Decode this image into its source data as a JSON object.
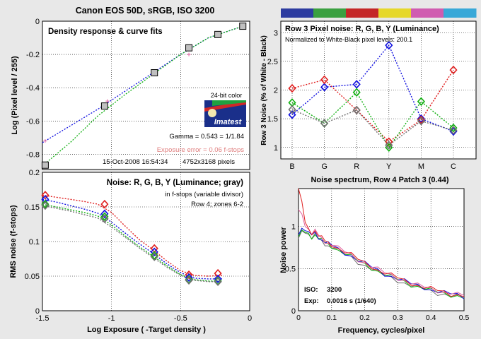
{
  "page": {
    "title": "Canon EOS 50D, sRGB, ISO 3200",
    "title_color": "#5a0a5a"
  },
  "colors": {
    "red": "#e02020",
    "green": "#10b010",
    "blue": "#1010e0",
    "gray": "#707070",
    "pink": "#e060a0",
    "bar": [
      "#2d3ca0",
      "#3aa040",
      "#c42626",
      "#e6d82a",
      "#d05cb0",
      "#38a8d8"
    ]
  },
  "chart_data": [
    {
      "id": "density",
      "type": "scatter",
      "title": "Density response & curve fits",
      "xlabel": "",
      "ylabel": "Log (Pixel level / 255)",
      "xlim": [
        -1.5,
        0
      ],
      "ylim": [
        -0.9,
        0
      ],
      "x_ticks": [
        "-1.5",
        "-1",
        "-0.5",
        "0"
      ],
      "y_ticks": [
        "0",
        "-0.2",
        "-0.4",
        "-0.6",
        "-0.8"
      ],
      "points": [
        {
          "x": -1.48,
          "y": -0.865
        },
        {
          "x": -1.05,
          "y": -0.51
        },
        {
          "x": -0.69,
          "y": -0.31
        },
        {
          "x": -0.44,
          "y": -0.16
        },
        {
          "x": -0.23,
          "y": -0.08
        },
        {
          "x": -0.05,
          "y": -0.03
        }
      ],
      "pink_points": [
        {
          "x": -1.48,
          "y": -0.72
        },
        {
          "x": -1.03,
          "y": -0.48
        },
        {
          "x": -0.44,
          "y": -0.2
        },
        {
          "x": -0.23,
          "y": -0.09
        }
      ],
      "fit_blue": [
        {
          "x": -1.5,
          "y": -0.73
        },
        {
          "x": -1.3,
          "y": -0.63
        },
        {
          "x": -1.1,
          "y": -0.53
        },
        {
          "x": -0.9,
          "y": -0.42
        },
        {
          "x": -0.7,
          "y": -0.31
        },
        {
          "x": -0.5,
          "y": -0.2
        },
        {
          "x": -0.3,
          "y": -0.1
        },
        {
          "x": -0.05,
          "y": -0.03
        }
      ],
      "fit_green": [
        {
          "x": -1.5,
          "y": -0.87
        },
        {
          "x": -1.3,
          "y": -0.73
        },
        {
          "x": -1.1,
          "y": -0.57
        },
        {
          "x": -0.9,
          "y": -0.44
        },
        {
          "x": -0.7,
          "y": -0.32
        },
        {
          "x": -0.5,
          "y": -0.2
        },
        {
          "x": -0.3,
          "y": -0.1
        },
        {
          "x": -0.05,
          "y": -0.03
        }
      ],
      "logo": {
        "caption": "24-bit color",
        "brand": "Imatest"
      },
      "gamma": "Gamma = 0.543 = 1/1.84",
      "exposure_error": "Exposure error = 0.06 f-stops",
      "timestamp": "15-Oct-2008 16:54:34",
      "dimensions": "4752x3168 pixels"
    },
    {
      "id": "noise",
      "type": "line",
      "title": "Noise: R, G, B, Y (Luminance; gray)",
      "subtitle_1": "in f-stops (variable divisor)",
      "subtitle_2": "Row 4; zones 6-2",
      "xlabel": "Log Exposure ( -Target density )",
      "ylabel": "RMS noise (f-stops)",
      "xlim": [
        -1.5,
        0
      ],
      "ylim": [
        0,
        0.2
      ],
      "x_ticks": [
        "-1.5",
        "-1",
        "-0.5",
        "0"
      ],
      "y_ticks": [
        "0.2",
        "0.15",
        "0.1",
        "0.05",
        "0"
      ],
      "x": [
        -1.48,
        -1.05,
        -0.69,
        -0.44,
        -0.23
      ],
      "series": [
        {
          "color": "red",
          "values": [
            0.167,
            0.154,
            0.09,
            0.052,
            0.054
          ]
        },
        {
          "color": "blue",
          "values": [
            0.161,
            0.14,
            0.085,
            0.048,
            0.046
          ]
        },
        {
          "color": "green",
          "values": [
            0.154,
            0.136,
            0.08,
            0.045,
            0.043
          ]
        },
        {
          "color": "gray",
          "values": [
            0.152,
            0.133,
            0.078,
            0.044,
            0.042
          ]
        }
      ],
      "fit_x": [
        -1.5,
        -1.4,
        -1.3,
        -1.2,
        -1.1,
        -1.0,
        -0.9,
        -0.8,
        -0.7,
        -0.6,
        -0.5,
        -0.4,
        -0.3,
        -0.2
      ],
      "fits": [
        {
          "color": "red",
          "values": [
            0.167,
            0.164,
            0.161,
            0.158,
            0.154,
            0.142,
            0.122,
            0.103,
            0.088,
            0.072,
            0.058,
            0.051,
            0.05,
            0.051
          ]
        },
        {
          "color": "blue",
          "values": [
            0.161,
            0.157,
            0.152,
            0.147,
            0.141,
            0.128,
            0.112,
            0.097,
            0.083,
            0.068,
            0.055,
            0.047,
            0.046,
            0.046
          ]
        },
        {
          "color": "green",
          "values": [
            0.154,
            0.15,
            0.146,
            0.142,
            0.137,
            0.124,
            0.108,
            0.093,
            0.079,
            0.065,
            0.052,
            0.045,
            0.043,
            0.043
          ]
        },
        {
          "color": "gray",
          "values": [
            0.152,
            0.148,
            0.144,
            0.139,
            0.134,
            0.121,
            0.106,
            0.091,
            0.077,
            0.063,
            0.051,
            0.044,
            0.042,
            0.042
          ]
        }
      ]
    },
    {
      "id": "row3",
      "type": "line",
      "title": "Row 3 Pixel noise: R, G, B, Y (Luminance)",
      "subtitle": "Normalized to White-Black pixel levels: 200.1",
      "xlabel": "",
      "ylabel": "Row 3 Noise (% of White - Black)",
      "categories": [
        "B",
        "G",
        "R",
        "Y",
        "M",
        "C"
      ],
      "ylim": [
        0.8,
        3.2
      ],
      "y_ticks": [
        "3",
        "2.5",
        "2",
        "1.5",
        "1"
      ],
      "series": [
        {
          "color": "blue",
          "values": [
            1.57,
            2.05,
            2.1,
            2.78,
            1.5,
            1.28
          ]
        },
        {
          "color": "red",
          "values": [
            2.03,
            2.18,
            1.65,
            1.1,
            1.48,
            2.35
          ]
        },
        {
          "color": "green",
          "values": [
            1.78,
            1.42,
            1.96,
            1.0,
            1.8,
            1.34
          ]
        },
        {
          "color": "gray",
          "values": [
            1.66,
            1.42,
            1.65,
            1.04,
            1.46,
            1.3
          ]
        }
      ]
    },
    {
      "id": "spectrum",
      "type": "line",
      "title": "Noise spectrum, Row 4 Patch 3 (0.44)",
      "xlabel": "Frequency, cycles/pixel",
      "ylabel": "Noise power",
      "xlim": [
        0,
        0.5
      ],
      "ylim": [
        0,
        1.45
      ],
      "x_ticks": [
        "0",
        "0.1",
        "0.2",
        "0.3",
        "0.4",
        "0.5"
      ],
      "y_ticks": [
        "1",
        "0.5",
        "0"
      ],
      "iso_label": "ISO:",
      "iso_value": "3200",
      "exp_label": "Exp:",
      "exp_value": "0.0016 s  (1/640)",
      "x": [
        0,
        0.01,
        0.02,
        0.03,
        0.04,
        0.05,
        0.06,
        0.07,
        0.08,
        0.09,
        0.1,
        0.12,
        0.14,
        0.16,
        0.18,
        0.2,
        0.22,
        0.24,
        0.26,
        0.28,
        0.3,
        0.32,
        0.34,
        0.36,
        0.38,
        0.4,
        0.42,
        0.44,
        0.46,
        0.48,
        0.5
      ],
      "series": [
        {
          "color": "red",
          "values": [
            1.45,
            1.3,
            1.05,
            0.98,
            0.93,
            0.95,
            0.9,
            0.86,
            0.83,
            0.8,
            0.79,
            0.74,
            0.7,
            0.66,
            0.61,
            0.57,
            0.53,
            0.48,
            0.45,
            0.42,
            0.39,
            0.36,
            0.33,
            0.3,
            0.28,
            0.26,
            0.24,
            0.22,
            0.2,
            0.19,
            0.18
          ]
        },
        {
          "color": "pink",
          "values": [
            1.2,
            1.15,
            1.0,
            0.97,
            0.92,
            0.94,
            0.9,
            0.85,
            0.83,
            0.8,
            0.79,
            0.74,
            0.7,
            0.66,
            0.61,
            0.57,
            0.53,
            0.49,
            0.45,
            0.42,
            0.39,
            0.36,
            0.33,
            0.3,
            0.28,
            0.26,
            0.24,
            0.22,
            0.21,
            0.19,
            0.18
          ]
        },
        {
          "color": "blue",
          "values": [
            0.9,
            0.98,
            0.95,
            0.94,
            0.9,
            0.92,
            0.88,
            0.84,
            0.82,
            0.79,
            0.78,
            0.73,
            0.69,
            0.65,
            0.6,
            0.56,
            0.52,
            0.48,
            0.44,
            0.41,
            0.38,
            0.35,
            0.32,
            0.3,
            0.28,
            0.25,
            0.23,
            0.21,
            0.2,
            0.19,
            0.17
          ]
        },
        {
          "color": "green",
          "values": [
            0.88,
            0.96,
            0.93,
            0.92,
            0.88,
            0.9,
            0.87,
            0.83,
            0.81,
            0.78,
            0.77,
            0.72,
            0.68,
            0.64,
            0.59,
            0.55,
            0.51,
            0.47,
            0.43,
            0.4,
            0.37,
            0.34,
            0.31,
            0.29,
            0.27,
            0.24,
            0.22,
            0.2,
            0.19,
            0.18,
            0.16
          ]
        },
        {
          "color": "gray",
          "values": [
            0.86,
            0.95,
            0.92,
            0.91,
            0.87,
            0.89,
            0.86,
            0.82,
            0.8,
            0.77,
            0.76,
            0.71,
            0.67,
            0.63,
            0.58,
            0.54,
            0.5,
            0.46,
            0.42,
            0.39,
            0.36,
            0.33,
            0.3,
            0.28,
            0.26,
            0.23,
            0.21,
            0.2,
            0.18,
            0.17,
            0.16
          ]
        }
      ]
    }
  ]
}
